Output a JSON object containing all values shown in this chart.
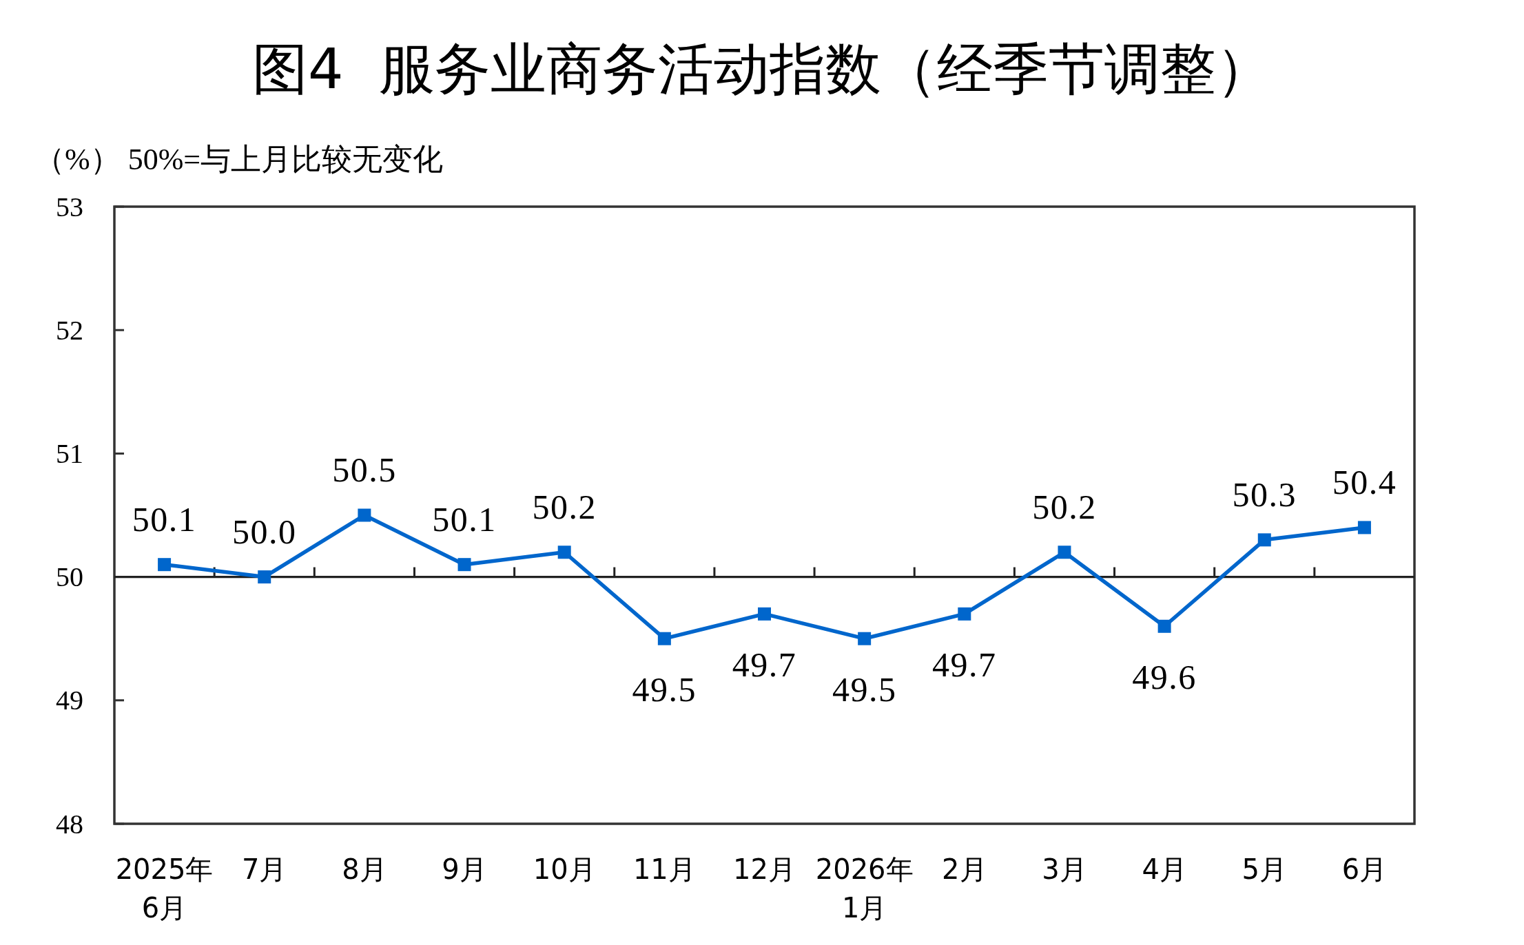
{
  "chart_data": {
    "type": "line",
    "title": "图4  服务业商务活动指数（经季节调整）",
    "ylabel": "（%） 50%=与上月比较无变化",
    "categories": [
      "2025年\n6月",
      "7月",
      "8月",
      "9月",
      "10月",
      "11月",
      "12月",
      "2026年\n1月",
      "2月",
      "3月",
      "4月",
      "5月",
      "6月"
    ],
    "values": [
      50.1,
      50.0,
      50.5,
      50.1,
      50.2,
      49.5,
      49.7,
      49.5,
      49.7,
      50.2,
      49.6,
      50.3,
      50.4
    ],
    "value_labels": [
      "50.1",
      "50.0",
      "50.5",
      "50.1",
      "50.2",
      "49.5",
      "49.7",
      "49.5",
      "49.7",
      "50.2",
      "49.6",
      "50.3",
      "50.4"
    ],
    "color": "#0066cc",
    "marker": "square",
    "line_style": "solid",
    "ylim": [
      48,
      53
    ],
    "yticks": [
      48,
      49,
      50,
      51,
      52,
      53
    ],
    "ref_lines": [
      {
        "axis": "y",
        "value": 50,
        "color": "#222222"
      }
    ]
  }
}
